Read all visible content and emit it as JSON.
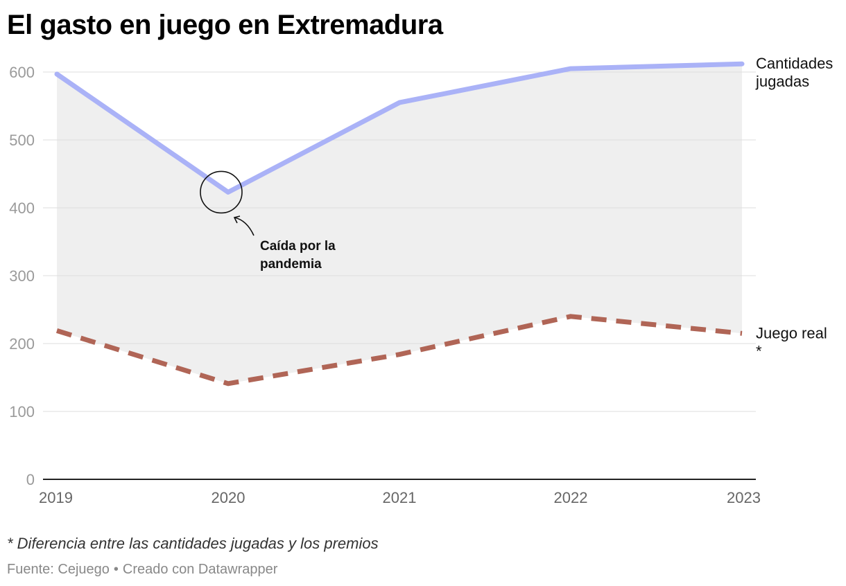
{
  "title": "El gasto en juego en Extremadura",
  "chart_data": {
    "type": "line",
    "x": [
      "2019",
      "2020",
      "2021",
      "2022",
      "2023"
    ],
    "y_ticks": [
      "0",
      "100",
      "200",
      "300",
      "400",
      "500",
      "600"
    ],
    "ylim": [
      0,
      600
    ],
    "grid": true,
    "series": [
      {
        "name": "Cantidades jugadas",
        "values": [
          597,
          423,
          555,
          605,
          612
        ],
        "color": "#aab2f7",
        "style": "solid"
      },
      {
        "name": "Juego real *",
        "values": [
          219,
          141,
          184,
          240,
          215
        ],
        "color": "#b06556",
        "style": "dashed"
      }
    ],
    "fill_between": true,
    "fill_color": "#efefef",
    "annotation": {
      "text": "Caída por la pandemia",
      "x": "2020",
      "y": 423
    }
  },
  "footnote": "* Diferencia entre las cantidades jugadas y los premios",
  "source": {
    "prefix": "Fuente:",
    "name": "Cejuego",
    "credit": "Creado con Datawrapper"
  }
}
